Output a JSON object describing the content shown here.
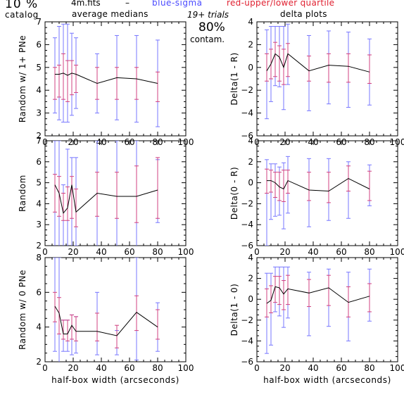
{
  "header": {
    "catalog_pct": "10 %",
    "catalog_label": "catalog",
    "file_name": "4m.fits",
    "dash": "–",
    "legend_blue": "blue-sigma",
    "legend_red": "red-upper/lower quartile",
    "average_medians": "average medians",
    "delta_plots": "delta plots",
    "trials": "19+ trials",
    "contam_pct": "80%",
    "contam_label": "contam."
  },
  "colors": {
    "sigma": "#7777ff",
    "quartile": "#d04080",
    "median_line": "#000000",
    "axes": "#000000"
  },
  "chart_data": [
    {
      "id": "p11",
      "type": "line",
      "ylabel": "Random w/ 1+ PNe",
      "xlabel": "",
      "xlim": [
        0,
        100
      ],
      "ylim": [
        2,
        7
      ],
      "xticks": [
        0,
        20,
        40,
        60,
        80,
        100
      ],
      "yticks": [
        2,
        3,
        4,
        5,
        6,
        7
      ],
      "x": [
        7,
        10,
        13,
        16,
        19,
        22,
        37,
        51,
        65,
        80
      ],
      "median": [
        4.7,
        4.7,
        4.75,
        4.65,
        4.75,
        4.7,
        4.3,
        4.55,
        4.5,
        4.3
      ],
      "quartile_low": [
        3.6,
        3.7,
        3.6,
        3.5,
        3.8,
        3.9,
        3.6,
        3.6,
        3.6,
        3.5
      ],
      "quartile_high": [
        5.0,
        5.1,
        5.6,
        5.3,
        5.3,
        5.1,
        5.0,
        5.0,
        5.0,
        4.8
      ],
      "sigma_low": [
        3.0,
        2.7,
        2.6,
        2.6,
        2.9,
        3.2,
        3.0,
        2.7,
        2.6,
        2.4
      ],
      "sigma_high": [
        6.3,
        6.8,
        6.9,
        6.9,
        6.5,
        6.3,
        5.6,
        6.4,
        6.4,
        6.2
      ]
    },
    {
      "id": "p12",
      "type": "line",
      "ylabel": "Delta(1 - R)",
      "xlabel": "",
      "xlim": [
        0,
        100
      ],
      "ylim": [
        -6,
        4
      ],
      "xticks": [
        0,
        20,
        40,
        60,
        80,
        100
      ],
      "yticks": [
        -6,
        -4,
        -2,
        0,
        2,
        4
      ],
      "x": [
        7,
        10,
        13,
        16,
        19,
        22,
        37,
        51,
        65,
        80
      ],
      "median": [
        -0.3,
        0.3,
        1.2,
        0.9,
        0.0,
        1.2,
        -0.3,
        0.2,
        0.1,
        -0.4
      ],
      "quartile_low": [
        -1.2,
        -1.0,
        -0.8,
        -1.2,
        -1.5,
        -0.8,
        -1.2,
        -1.3,
        -1.3,
        -1.4
      ],
      "quartile_high": [
        1.2,
        1.6,
        2.2,
        1.9,
        1.6,
        2.1,
        1.0,
        1.2,
        1.2,
        1.1
      ],
      "sigma_low": [
        -4.5,
        -3.0,
        -1.6,
        -1.7,
        -3.7,
        -1.5,
        -3.8,
        -3.2,
        -3.5,
        -3.3
      ],
      "sigma_high": [
        3.3,
        3.6,
        3.6,
        3.6,
        3.6,
        3.8,
        2.8,
        3.2,
        3.1,
        2.5
      ]
    },
    {
      "id": "p21",
      "type": "line",
      "ylabel": "Random",
      "xlabel": "",
      "xlim": [
        0,
        100
      ],
      "ylim": [
        2,
        7
      ],
      "xticks": [
        0,
        20,
        40,
        60,
        80,
        100
      ],
      "yticks": [
        2,
        3,
        4,
        5,
        6,
        7
      ],
      "x": [
        7,
        10,
        13,
        16,
        19,
        22,
        37,
        51,
        65,
        80
      ],
      "median": [
        4.9,
        4.5,
        3.55,
        3.8,
        4.9,
        3.6,
        4.5,
        4.35,
        4.35,
        4.65
      ],
      "quartile_low": [
        3.6,
        3.4,
        3.2,
        3.2,
        3.3,
        2.9,
        3.4,
        3.3,
        3.1,
        3.3
      ],
      "quartile_high": [
        5.4,
        5.3,
        4.5,
        4.8,
        5.3,
        4.7,
        5.5,
        5.5,
        5.8,
        6.2
      ],
      "sigma_low": [
        1.6,
        1.6,
        1.6,
        1.6,
        1.6,
        2.0,
        1.6,
        1.6,
        1.6,
        3.1
      ],
      "sigma_high": [
        7.0,
        7.0,
        4.9,
        6.6,
        6.2,
        6.2,
        7.0,
        7.0,
        7.0,
        6.1
      ]
    },
    {
      "id": "p22",
      "type": "line",
      "ylabel": "Delta(0 - R)",
      "xlabel": "",
      "xlim": [
        0,
        100
      ],
      "ylim": [
        -6,
        4
      ],
      "xticks": [
        0,
        20,
        40,
        60,
        80,
        100
      ],
      "yticks": [
        -6,
        -4,
        -2,
        0,
        2,
        4
      ],
      "x": [
        7,
        10,
        13,
        16,
        19,
        22,
        37,
        51,
        65,
        80
      ],
      "median": [
        0.2,
        0.2,
        0.0,
        -0.4,
        -0.6,
        0.2,
        -0.7,
        -0.8,
        0.4,
        -0.6
      ],
      "quartile_low": [
        -1.0,
        -0.9,
        -1.4,
        -1.7,
        -1.8,
        -1.0,
        -1.7,
        -1.9,
        -0.8,
        -1.7
      ],
      "quartile_high": [
        1.3,
        1.2,
        1.0,
        1.0,
        1.2,
        1.2,
        1.0,
        1.0,
        1.6,
        1.1
      ],
      "sigma_low": [
        -6.0,
        -3.5,
        -3.2,
        -3.1,
        -4.4,
        -2.9,
        -4.2,
        -3.6,
        -3.4,
        -2.2
      ],
      "sigma_high": [
        2.2,
        1.8,
        1.8,
        1.5,
        1.9,
        2.5,
        2.3,
        2.3,
        2.0,
        1.7
      ]
    },
    {
      "id": "p31",
      "type": "line",
      "ylabel": "Random w/ 0 PNe",
      "xlabel": "half-box width (arcseconds)",
      "xlim": [
        0,
        100
      ],
      "ylim": [
        2,
        8
      ],
      "xticks": [
        0,
        20,
        40,
        60,
        80,
        100
      ],
      "yticks": [
        2,
        4,
        6,
        8
      ],
      "x": [
        7,
        10,
        13,
        16,
        19,
        22,
        37,
        51,
        65,
        80
      ],
      "median": [
        5.2,
        4.8,
        3.6,
        3.6,
        4.1,
        3.75,
        3.75,
        3.5,
        4.85,
        4.0
      ],
      "quartile_low": [
        4.3,
        3.6,
        3.3,
        3.2,
        3.3,
        3.2,
        3.2,
        2.8,
        3.8,
        3.3
      ],
      "quartile_high": [
        6.0,
        5.7,
        4.4,
        4.4,
        4.7,
        4.6,
        4.8,
        4.1,
        5.8,
        5.0
      ],
      "sigma_low": [
        2.6,
        1.8,
        2.6,
        2.6,
        2.4,
        2.5,
        2.4,
        2.4,
        2.1,
        2.6
      ],
      "sigma_high": [
        8.0,
        8.0,
        4.4,
        4.4,
        4.7,
        4.6,
        6.0,
        3.8,
        8.0,
        5.4
      ]
    },
    {
      "id": "p32",
      "type": "line",
      "ylabel": "Delta(1 - 0)",
      "xlabel": "half-box width (arcseconds)",
      "xlim": [
        0,
        100
      ],
      "ylim": [
        -6,
        4
      ],
      "xticks": [
        0,
        20,
        40,
        60,
        80,
        100
      ],
      "yticks": [
        -6,
        -4,
        -2,
        0,
        2,
        4
      ],
      "x": [
        7,
        10,
        13,
        16,
        19,
        22,
        37,
        51,
        65,
        80
      ],
      "median": [
        -0.4,
        -0.1,
        1.2,
        1.1,
        0.5,
        1.0,
        0.6,
        1.1,
        -0.3,
        0.3
      ],
      "quartile_low": [
        -1.7,
        -1.3,
        -0.3,
        -0.5,
        -1.0,
        -0.5,
        -0.7,
        -0.6,
        -1.7,
        -1.2
      ],
      "quartile_high": [
        1.0,
        1.3,
        2.2,
        2.2,
        1.8,
        2.3,
        1.9,
        2.3,
        1.2,
        1.5
      ],
      "sigma_low": [
        -5.2,
        -4.4,
        -1.2,
        -1.6,
        -2.7,
        -1.8,
        -3.5,
        -2.6,
        -4.0,
        -2.1
      ],
      "sigma_high": [
        2.5,
        2.5,
        3.1,
        3.1,
        3.1,
        3.1,
        2.6,
        2.9,
        2.6,
        2.9
      ]
    }
  ]
}
